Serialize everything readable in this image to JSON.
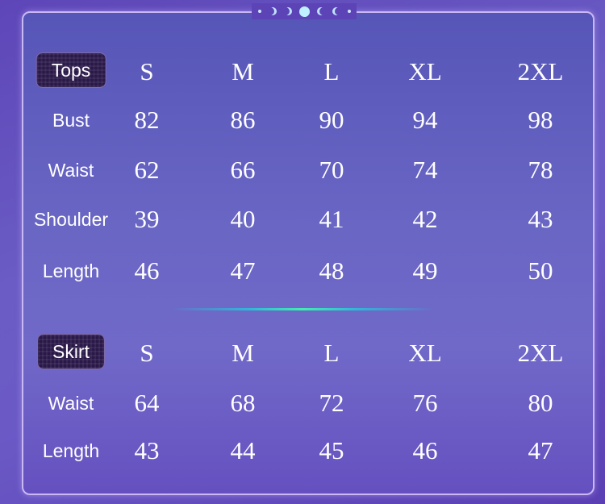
{
  "colors": {
    "background": "#5a3fb0",
    "panel_border": "#c9b8f4",
    "badge": "#2a1848",
    "accent": "#3ef0b0"
  },
  "sizes": [
    "S",
    "M",
    "L",
    "XL",
    "2XL"
  ],
  "tops": {
    "label": "Tops",
    "rows": [
      {
        "label": "Bust",
        "values": [
          "82",
          "86",
          "90",
          "94",
          "98"
        ]
      },
      {
        "label": "Waist",
        "values": [
          "62",
          "66",
          "70",
          "74",
          "78"
        ]
      },
      {
        "label": "Shoulder",
        "values": [
          "39",
          "40",
          "41",
          "42",
          "43"
        ]
      },
      {
        "label": "Length",
        "values": [
          "46",
          "47",
          "48",
          "49",
          "50"
        ]
      }
    ]
  },
  "skirt": {
    "label": "Skirt",
    "rows": [
      {
        "label": "Waist",
        "values": [
          "64",
          "68",
          "72",
          "76",
          "80"
        ]
      },
      {
        "label": "Length",
        "values": [
          "43",
          "44",
          "45",
          "46",
          "47"
        ]
      }
    ]
  }
}
